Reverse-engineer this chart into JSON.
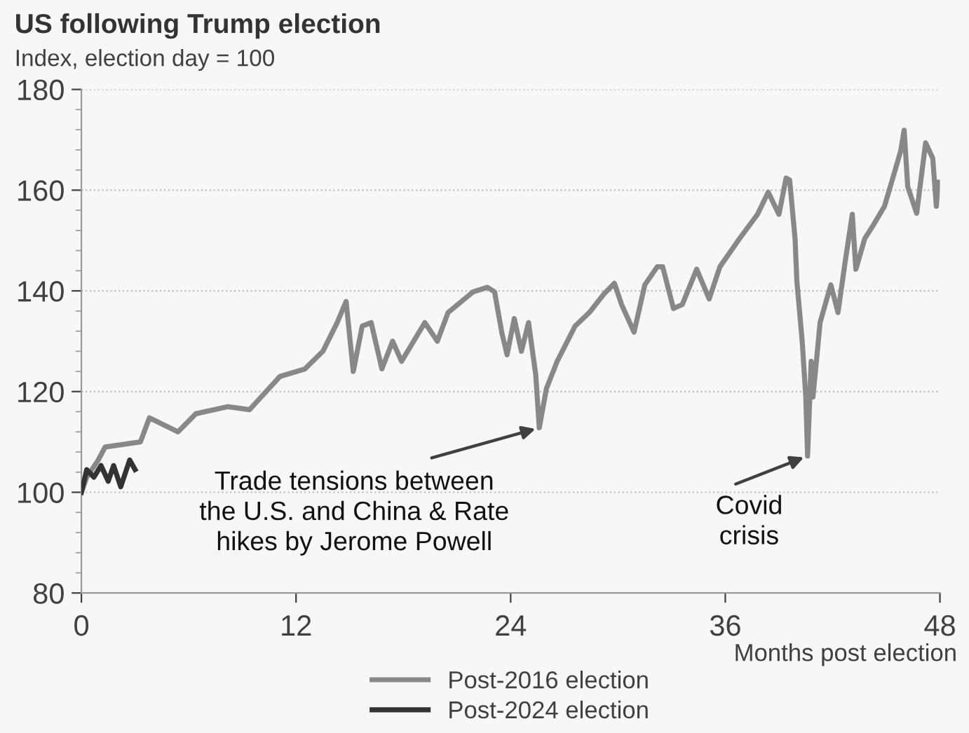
{
  "chart_data": {
    "type": "line",
    "title": "US following Trump election",
    "subtitle": "Index, election day = 100",
    "xlabel": "Months post election",
    "xlim": [
      0,
      48
    ],
    "xticks": [
      0,
      12,
      24,
      36,
      48
    ],
    "ylim": [
      80,
      180
    ],
    "yticks": [
      80,
      100,
      120,
      140,
      160,
      180
    ],
    "grid": "y",
    "legend": "bottom",
    "annotations": [
      {
        "text": "Trade tensions between\nthe U.S. and China & Rate\nhikes by Jerome Powell",
        "x": 25.6,
        "y": 112.8
      },
      {
        "text": "Covid\ncrisis",
        "x": 40.6,
        "y": 107.2
      }
    ],
    "series": [
      {
        "name": "Post-2016 election",
        "color": "#888888",
        "x": [
          0,
          0.3,
          0.94,
          1.33,
          3.3,
          3.8,
          5.4,
          6.4,
          8.2,
          9.4,
          11.1,
          12.5,
          13.5,
          14.3,
          14.8,
          15.2,
          15.7,
          16.2,
          16.8,
          17.4,
          17.9,
          19.2,
          19.9,
          20.5,
          21.9,
          22.7,
          23.1,
          23.5,
          23.8,
          24.2,
          24.6,
          25.0,
          25.4,
          25.6,
          26.0,
          26.6,
          27.6,
          28.4,
          29.2,
          29.8,
          30.2,
          30.9,
          31.5,
          32.2,
          32.5,
          33.1,
          33.6,
          34.4,
          35.1,
          35.7,
          36.8,
          37.8,
          38.4,
          39.0,
          39.4,
          39.6,
          39.9,
          40.0,
          40.3,
          40.5,
          40.6,
          40.8,
          40.9,
          41.3,
          41.9,
          42.3,
          42.7,
          43.1,
          43.3,
          43.8,
          44.3,
          44.9,
          45.3,
          45.8,
          46.0,
          46.2,
          46.7,
          47.2,
          47.6,
          47.8,
          47.9
        ],
        "values": [
          100,
          103,
          106.4,
          109,
          110,
          114.8,
          112,
          115.6,
          117,
          116.4,
          123,
          124.5,
          128,
          133.7,
          137.9,
          124,
          133,
          133.7,
          124.5,
          130,
          126,
          133.7,
          130,
          135.7,
          139.8,
          140.7,
          139.8,
          131.8,
          127.3,
          134.5,
          128,
          133.7,
          123.4,
          112.8,
          120.6,
          126,
          133,
          135.7,
          139.3,
          141.5,
          137.3,
          131.8,
          141.2,
          144.8,
          144.8,
          136.5,
          137.3,
          144.3,
          138.4,
          144.8,
          150.4,
          155.2,
          159.6,
          155.2,
          162.4,
          162,
          150.4,
          142,
          130,
          118.9,
          107.2,
          126,
          118.9,
          133.7,
          141.2,
          135.7,
          145.7,
          155.2,
          144.3,
          150.4,
          153.2,
          156.8,
          161.6,
          167.7,
          171.9,
          160.7,
          155.4,
          169.4,
          166.3,
          156.8,
          161.6
        ]
      },
      {
        "name": "Post-2024 election",
        "color": "#333333",
        "x": [
          0,
          0.3,
          0.7,
          1.1,
          1.5,
          1.8,
          2.2,
          2.5,
          2.7,
          3.0
        ],
        "values": [
          100,
          104.5,
          103,
          105.3,
          102.2,
          105.3,
          101.1,
          104.3,
          106.4,
          104.5
        ]
      }
    ]
  }
}
